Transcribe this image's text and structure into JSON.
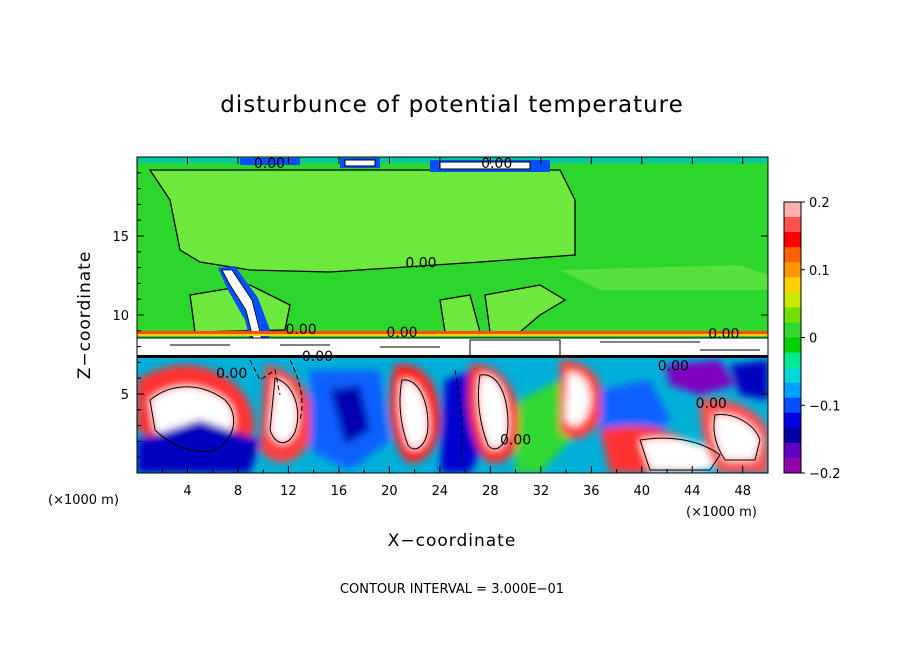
{
  "chart_data": {
    "type": "heatmap",
    "title": "disturbunce of potential temperature",
    "xlabel": "X−coordinate",
    "ylabel": "Z−coordinate",
    "x_unit_left": "(×1000 m)",
    "x_unit_right": "(×1000 m)",
    "footer": "CONTOUR INTERVAL = 3.000E−01",
    "x_ticks": [
      "4",
      "8",
      "12",
      "16",
      "20",
      "24",
      "28",
      "32",
      "36",
      "40",
      "44",
      "48"
    ],
    "x_tick_values": [
      4,
      8,
      12,
      16,
      20,
      24,
      28,
      32,
      36,
      40,
      44,
      48
    ],
    "y_ticks": [
      "5",
      "10",
      "15"
    ],
    "y_tick_values": [
      5,
      10,
      15
    ],
    "xlim": [
      0,
      50
    ],
    "ylim": [
      0,
      20
    ],
    "colorbar": {
      "min": -0.2,
      "max": 0.2,
      "tick_labels": [
        "0.2",
        "0.1",
        "0",
        "−0.1",
        "−0.2"
      ],
      "tick_values": [
        0.2,
        0.1,
        0,
        -0.1,
        -0.2
      ],
      "colors": [
        "#ffb0b0",
        "#ff5050",
        "#ff0000",
        "#ff6000",
        "#ff9800",
        "#ffd000",
        "#c8e800",
        "#70e000",
        "#30d830",
        "#00d000",
        "#00e890",
        "#00d8d8",
        "#00a0ff",
        "#0050ff",
        "#0000e0",
        "#0000a0",
        "#6000c0",
        "#9000b0"
      ]
    },
    "contour_labels": [
      {
        "text": "0.00",
        "x": 10.5,
        "z": 19.3
      },
      {
        "text": "0.00",
        "x": 28.5,
        "z": 19.3
      },
      {
        "text": "0.00",
        "x": 22.5,
        "z": 13.0
      },
      {
        "text": "0.00",
        "x": 13.0,
        "z": 8.8
      },
      {
        "text": "0.00",
        "x": 21.0,
        "z": 8.6
      },
      {
        "text": "0.00",
        "x": 14.3,
        "z": 7.1
      },
      {
        "text": "0.00",
        "x": 7.5,
        "z": 6.0
      },
      {
        "text": "0.00",
        "x": 46.5,
        "z": 8.5
      },
      {
        "text": "0.00",
        "x": 42.5,
        "z": 6.5
      },
      {
        "text": "0.00",
        "x": 45.5,
        "z": 4.1
      },
      {
        "text": "0.00",
        "x": 30.0,
        "z": 1.8
      }
    ],
    "regions": [
      {
        "desc": "upper field",
        "value": 0.0,
        "z_range": [
          9,
          20
        ]
      },
      {
        "desc": "layer near 8.5 km",
        "value": 0.2,
        "z_range": [
          8.5,
          9
        ]
      },
      {
        "desc": "lower turbulent field",
        "value": "mixed -0.2..0.2",
        "z_range": [
          0,
          8
        ]
      }
    ]
  }
}
